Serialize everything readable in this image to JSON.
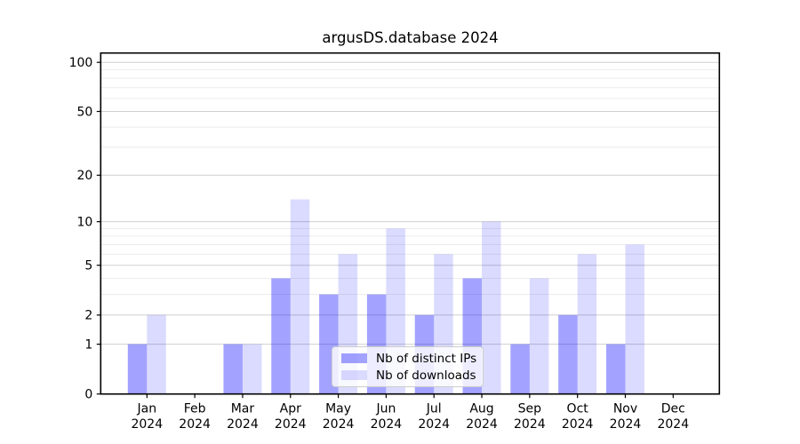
{
  "title": "argusDS.database 2024",
  "colors": {
    "bar_base": "#0000ff",
    "series1_alpha": 0.36,
    "series2_alpha": 0.14,
    "grid_major": "#cfcfcf",
    "grid_minor": "#ececec",
    "axis": "#000000",
    "legend_border": "#cccccc",
    "legend_bg": "rgba(255,255,255,0.8)"
  },
  "chart_data": {
    "type": "bar",
    "title": "argusDS.database 2024",
    "categories": [
      "Jan",
      "Feb",
      "Mar",
      "Apr",
      "May",
      "Jun",
      "Jul",
      "Aug",
      "Sep",
      "Oct",
      "Nov",
      "Dec"
    ],
    "year_label": "2024",
    "series": [
      {
        "name": "Nb of distinct IPs",
        "color": "#0000ff",
        "alpha": 0.36,
        "values": [
          1,
          0,
          1,
          4,
          3,
          3,
          2,
          4,
          1,
          2,
          1,
          0
        ]
      },
      {
        "name": "Nb of downloads",
        "color": "#0000ff",
        "alpha": 0.14,
        "values": [
          2,
          0,
          1,
          14,
          6,
          9,
          6,
          10,
          4,
          6,
          7,
          0
        ]
      }
    ],
    "yscale": "log1p",
    "ylim": [
      0,
      114
    ],
    "yticks": [
      0,
      1,
      2,
      5,
      10,
      20,
      50,
      100
    ],
    "minor_yticks": [
      3,
      4,
      6,
      7,
      8,
      9,
      30,
      40,
      60,
      70,
      80,
      90
    ],
    "xlabel": "",
    "ylabel": "",
    "grid": true,
    "legend_position": "lower center"
  }
}
